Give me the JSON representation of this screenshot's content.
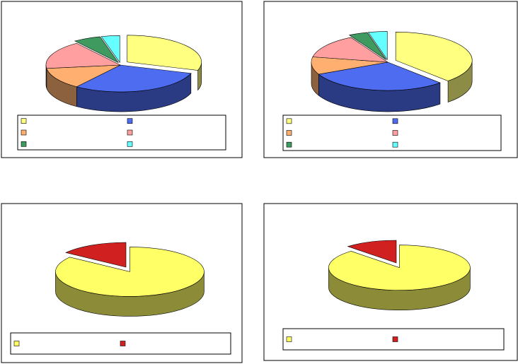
{
  "chart_data": [
    {
      "type": "pie",
      "values": [
        30,
        30,
        13,
        17,
        6,
        4
      ],
      "colors": [
        "#ffff80",
        "#4d6cf0",
        "#ffb070",
        "#ff9f9f",
        "#3f9a5f",
        "#66ffff"
      ]
    },
    {
      "type": "pie",
      "values": [
        38,
        30,
        10,
        14,
        4,
        4
      ],
      "colors": [
        "#ffff80",
        "#4d6cf0",
        "#ffb070",
        "#ff9f9f",
        "#3f9a5f",
        "#66ffff"
      ]
    },
    {
      "type": "pie",
      "values": [
        85,
        15
      ],
      "colors": [
        "#ffff66",
        "#d02020"
      ]
    },
    {
      "type": "pie",
      "values": [
        88,
        12
      ],
      "colors": [
        "#ffff66",
        "#d02020"
      ]
    }
  ]
}
